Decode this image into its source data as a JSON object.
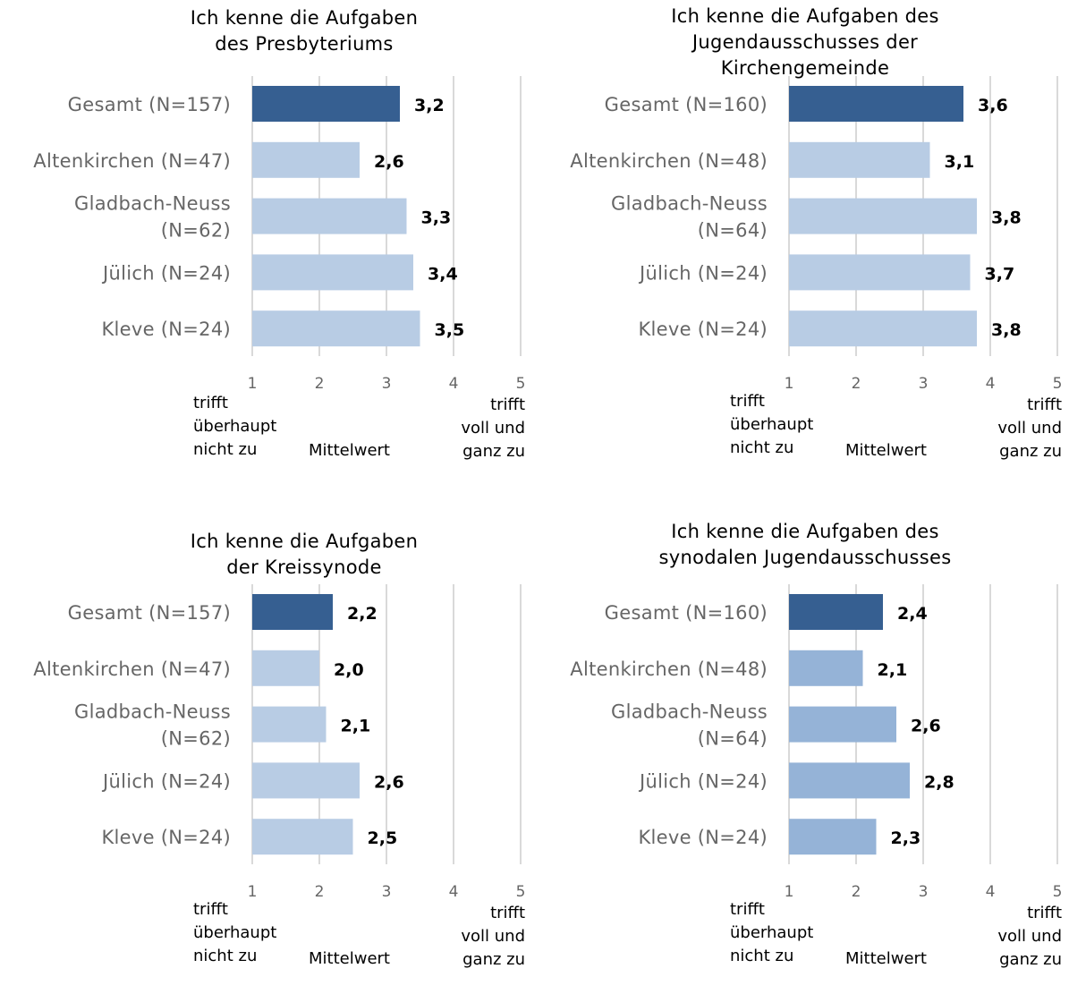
{
  "chart_data": [
    {
      "type": "bar",
      "orientation": "horizontal",
      "title": "Ich kenne die Aufgaben\ndes Presbyteriums",
      "categories": [
        "Gesamt (N=157)",
        "Altenkirchen (N=47)",
        "Gladbach-Neuss\n(N=62)",
        "Jülich (N=24)",
        "Kleve (N=24)"
      ],
      "values": [
        3.2,
        2.6,
        3.3,
        3.4,
        3.5
      ],
      "value_labels": [
        "3,2",
        "2,6",
        "3,3",
        "3,4",
        "3,5"
      ],
      "colors": [
        "#365F91",
        "#B8CCE4",
        "#B8CCE4",
        "#B8CCE4",
        "#B8CCE4"
      ],
      "xlim": [
        1,
        5
      ],
      "xticks": [
        "1",
        "2",
        "3",
        "4",
        "5"
      ],
      "xlabel": "Mittelwert",
      "scale_low_label": "trifft\nüberhaupt\nnicht zu",
      "scale_high_label": "trifft\nvoll und\nganz zu",
      "grid": true
    },
    {
      "type": "bar",
      "orientation": "horizontal",
      "title": "Ich kenne die Aufgaben des\nJugendausschusses der\nKirchengemeinde",
      "categories": [
        "Gesamt (N=160)",
        "Altenkirchen (N=48)",
        "Gladbach-Neuss\n(N=64)",
        "Jülich (N=24)",
        "Kleve (N=24)"
      ],
      "values": [
        3.6,
        3.1,
        3.8,
        3.7,
        3.8
      ],
      "value_labels": [
        "3,6",
        "3,1",
        "3,8",
        "3,7",
        "3,8"
      ],
      "colors": [
        "#365F91",
        "#B8CCE4",
        "#B8CCE4",
        "#B8CCE4",
        "#B8CCE4"
      ],
      "xlim": [
        1,
        5
      ],
      "xticks": [
        "1",
        "2",
        "3",
        "4",
        "5"
      ],
      "xlabel": "Mittelwert",
      "scale_low_label": "trifft\nüberhaupt\nnicht zu",
      "scale_high_label": "trifft\nvoll und\nganz zu",
      "grid": true
    },
    {
      "type": "bar",
      "orientation": "horizontal",
      "title": "Ich kenne die Aufgaben\nder Kreissynode",
      "categories": [
        "Gesamt (N=157)",
        "Altenkirchen (N=47)",
        "Gladbach-Neuss\n(N=62)",
        "Jülich (N=24)",
        "Kleve (N=24)"
      ],
      "values": [
        2.2,
        2.0,
        2.1,
        2.6,
        2.5
      ],
      "value_labels": [
        "2,2",
        "2,0",
        "2,1",
        "2,6",
        "2,5"
      ],
      "colors": [
        "#365F91",
        "#B8CCE4",
        "#B8CCE4",
        "#B8CCE4",
        "#B8CCE4"
      ],
      "xlim": [
        1,
        5
      ],
      "xticks": [
        "1",
        "2",
        "3",
        "4",
        "5"
      ],
      "xlabel": "Mittelwert",
      "scale_low_label": "trifft\nüberhaupt\nnicht zu",
      "scale_high_label": "trifft\nvoll und\nganz zu",
      "grid": true
    },
    {
      "type": "bar",
      "orientation": "horizontal",
      "title": "Ich kenne die Aufgaben des\nsynodalen Jugendausschusses",
      "categories": [
        "Gesamt (N=160)",
        "Altenkirchen (N=48)",
        "Gladbach-Neuss\n(N=64)",
        "Jülich (N=24)",
        "Kleve (N=24)"
      ],
      "values": [
        2.4,
        2.1,
        2.6,
        2.8,
        2.3
      ],
      "value_labels": [
        "2,4",
        "2,1",
        "2,6",
        "2,8",
        "2,3"
      ],
      "colors": [
        "#365F91",
        "#95B3D7",
        "#95B3D7",
        "#95B3D7",
        "#95B3D7"
      ],
      "xlim": [
        1,
        5
      ],
      "xticks": [
        "1",
        "2",
        "3",
        "4",
        "5"
      ],
      "xlabel": "Mittelwert",
      "scale_low_label": "trifft\nüberhaupt\nnicht zu",
      "scale_high_label": "trifft\nvoll und\nganz zu",
      "grid": true
    }
  ]
}
